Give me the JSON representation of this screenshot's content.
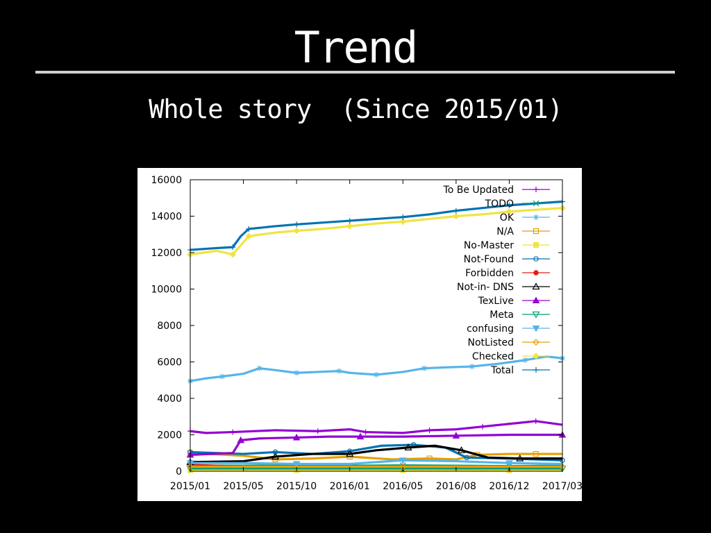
{
  "slide": {
    "title": "Trend",
    "subtitle": "Whole story  (Since 2015/01)"
  },
  "colors": {
    "background": "#000000",
    "rule": "#cfcfcf"
  },
  "chart_data": {
    "type": "line",
    "title": "",
    "xlabel": "",
    "ylabel": "",
    "x_ticks": [
      "2015/01",
      "2015/05",
      "2015/10",
      "2016/01",
      "2016/05",
      "2016/08",
      "2016/12",
      "2017/03"
    ],
    "y_ticks": [
      "0",
      "2000",
      "4000",
      "6000",
      "8000",
      "10000",
      "12000",
      "14000",
      "16000"
    ],
    "ylim": [
      0,
      16000
    ],
    "grid": false,
    "legend_position": "top-right",
    "series": [
      {
        "name": "To Be Updated",
        "color": "#9400d3",
        "marker": "+",
        "values": [
          [
            0,
            2200
          ],
          [
            0.3,
            2100
          ],
          [
            0.8,
            2150
          ],
          [
            1.6,
            2250
          ],
          [
            2.4,
            2200
          ],
          [
            3,
            2300
          ],
          [
            3.3,
            2150
          ],
          [
            4,
            2100
          ],
          [
            4.5,
            2250
          ],
          [
            5,
            2300
          ],
          [
            5.5,
            2450
          ],
          [
            6,
            2600
          ],
          [
            6.5,
            2750
          ],
          [
            7,
            2550
          ]
        ]
      },
      {
        "name": "TODO",
        "color": "#009e73",
        "marker": "x",
        "values": [
          [
            0,
            300
          ],
          [
            1,
            300
          ],
          [
            2,
            320
          ],
          [
            3,
            300
          ],
          [
            4,
            320
          ],
          [
            5,
            300
          ],
          [
            6,
            280
          ],
          [
            7,
            300
          ]
        ]
      },
      {
        "name": "OK",
        "color": "#56b4e9",
        "marker": "*",
        "values": [
          [
            0,
            4950
          ],
          [
            0.3,
            5100
          ],
          [
            0.6,
            5200
          ],
          [
            1,
            5350
          ],
          [
            1.3,
            5650
          ],
          [
            1.6,
            5550
          ],
          [
            2,
            5400
          ],
          [
            2.4,
            5450
          ],
          [
            2.8,
            5500
          ],
          [
            3,
            5400
          ],
          [
            3.5,
            5300
          ],
          [
            4,
            5450
          ],
          [
            4.4,
            5650
          ],
          [
            4.8,
            5700
          ],
          [
            5.3,
            5750
          ],
          [
            5.8,
            5900
          ],
          [
            6.3,
            6100
          ],
          [
            6.7,
            6300
          ],
          [
            7,
            6200
          ]
        ]
      },
      {
        "name": "N/A",
        "color": "#e69f00",
        "marker": "square-open",
        "values": [
          [
            0,
            1000
          ],
          [
            1,
            850
          ],
          [
            1.6,
            650
          ],
          [
            2.3,
            700
          ],
          [
            3,
            800
          ],
          [
            3.8,
            650
          ],
          [
            4.5,
            700
          ],
          [
            5,
            650
          ],
          [
            5.4,
            900
          ],
          [
            6,
            950
          ],
          [
            6.5,
            950
          ],
          [
            7,
            950
          ]
        ]
      },
      {
        "name": "No-Master",
        "color": "#f0e442",
        "marker": "square-filled",
        "values": [
          [
            0,
            50
          ],
          [
            1,
            50
          ],
          [
            2,
            60
          ],
          [
            3,
            50
          ],
          [
            4,
            60
          ],
          [
            5,
            50
          ],
          [
            6,
            50
          ],
          [
            7,
            50
          ]
        ]
      },
      {
        "name": "Not-Found",
        "color": "#0072b2",
        "marker": "circle-open",
        "values": [
          [
            0,
            1050
          ],
          [
            1,
            950
          ],
          [
            1.6,
            1050
          ],
          [
            2.3,
            950
          ],
          [
            3,
            1100
          ],
          [
            3.6,
            1400
          ],
          [
            4.2,
            1450
          ],
          [
            4.8,
            1300
          ],
          [
            5.2,
            750
          ],
          [
            6,
            700
          ],
          [
            7,
            600
          ]
        ]
      },
      {
        "name": "Forbidden",
        "color": "#e51e10",
        "marker": "circle-filled",
        "values": [
          [
            0,
            350
          ],
          [
            1,
            250
          ],
          [
            2,
            250
          ],
          [
            3,
            250
          ],
          [
            4,
            250
          ],
          [
            5,
            200
          ],
          [
            6,
            180
          ],
          [
            7,
            150
          ]
        ]
      },
      {
        "name": "Not-in- DNS",
        "color": "#000000",
        "marker": "triangle-open",
        "values": [
          [
            0,
            500
          ],
          [
            1,
            550
          ],
          [
            1.6,
            800
          ],
          [
            2.3,
            950
          ],
          [
            3,
            950
          ],
          [
            3.5,
            1150
          ],
          [
            4.1,
            1300
          ],
          [
            4.6,
            1400
          ],
          [
            5.1,
            1150
          ],
          [
            5.6,
            750
          ],
          [
            6.2,
            700
          ],
          [
            7,
            700
          ]
        ]
      },
      {
        "name": "TexLive",
        "color": "#9400d3",
        "marker": "triangle-filled",
        "values": [
          [
            0,
            900
          ],
          [
            0.8,
            1000
          ],
          [
            0.95,
            1700
          ],
          [
            1.3,
            1800
          ],
          [
            2,
            1850
          ],
          [
            2.6,
            1900
          ],
          [
            3.2,
            1900
          ],
          [
            4,
            1900
          ],
          [
            5,
            1950
          ],
          [
            6,
            2000
          ],
          [
            7,
            2000
          ]
        ]
      },
      {
        "name": "Meta",
        "color": "#009e73",
        "marker": "triangle-down-open",
        "values": [
          [
            0,
            150
          ],
          [
            2,
            150
          ],
          [
            4,
            150
          ],
          [
            6,
            150
          ],
          [
            7,
            150
          ]
        ]
      },
      {
        "name": "confusing",
        "color": "#56b4e9",
        "marker": "triangle-down-filled",
        "values": [
          [
            0,
            450
          ],
          [
            1,
            450
          ],
          [
            2,
            400
          ],
          [
            3,
            400
          ],
          [
            4,
            600
          ],
          [
            5,
            550
          ],
          [
            6,
            450
          ],
          [
            7,
            400
          ]
        ]
      },
      {
        "name": "NotListed",
        "color": "#e69f00",
        "marker": "diamond-open",
        "values": [
          [
            0,
            250
          ],
          [
            2,
            250
          ],
          [
            4,
            250
          ],
          [
            6,
            250
          ],
          [
            7,
            250
          ]
        ]
      },
      {
        "name": "Checked",
        "color": "#f0e442",
        "marker": "diamond-filled",
        "values": [
          [
            0,
            11900
          ],
          [
            0.5,
            12100
          ],
          [
            0.8,
            11900
          ],
          [
            0.95,
            12400
          ],
          [
            1.1,
            12900
          ],
          [
            1.6,
            13100
          ],
          [
            2,
            13200
          ],
          [
            2.5,
            13300
          ],
          [
            3,
            13450
          ],
          [
            3.5,
            13600
          ],
          [
            4,
            13700
          ],
          [
            4.5,
            13850
          ],
          [
            5,
            14000
          ],
          [
            5.5,
            14100
          ],
          [
            6,
            14250
          ],
          [
            6.5,
            14350
          ],
          [
            7,
            14450
          ]
        ]
      },
      {
        "name": "Total",
        "color": "#0072b2",
        "marker": "+",
        "values": [
          [
            0,
            12150
          ],
          [
            0.5,
            12250
          ],
          [
            0.8,
            12300
          ],
          [
            0.95,
            12900
          ],
          [
            1.1,
            13300
          ],
          [
            1.6,
            13450
          ],
          [
            2,
            13550
          ],
          [
            2.5,
            13650
          ],
          [
            3,
            13750
          ],
          [
            3.5,
            13850
          ],
          [
            4,
            13950
          ],
          [
            4.5,
            14100
          ],
          [
            5,
            14300
          ],
          [
            5.5,
            14450
          ],
          [
            6,
            14600
          ],
          [
            6.5,
            14700
          ],
          [
            7,
            14800
          ]
        ]
      }
    ]
  }
}
